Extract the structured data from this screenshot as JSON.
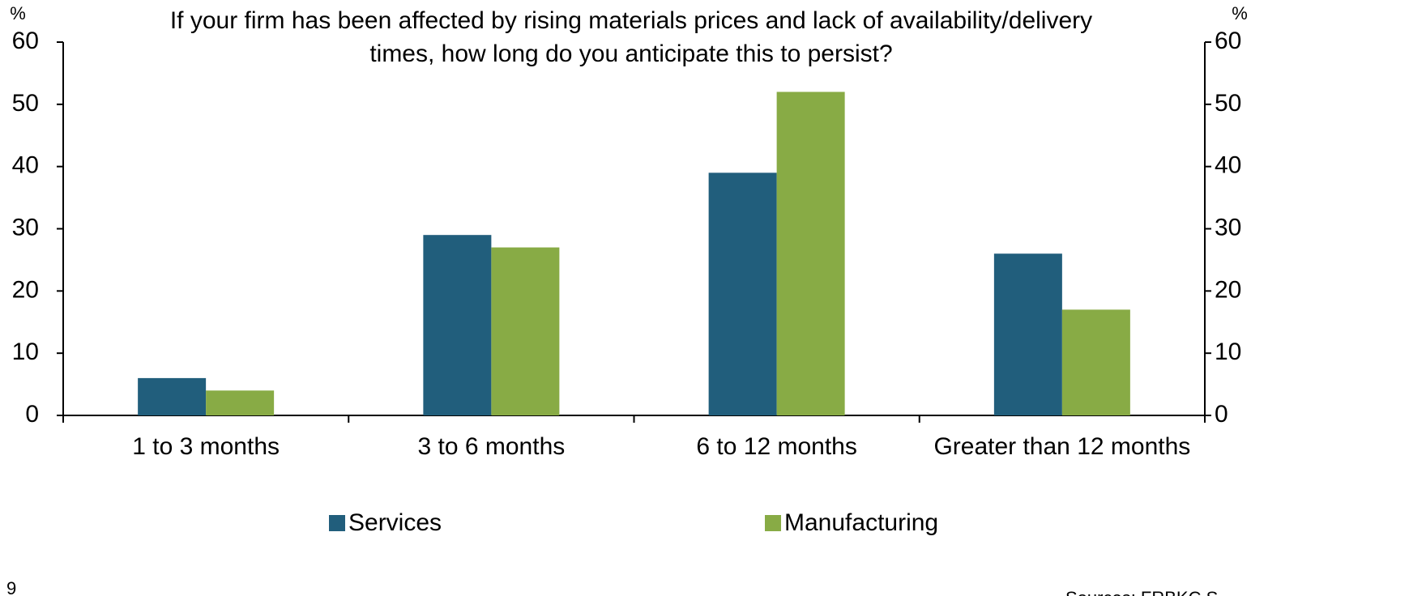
{
  "chart_data": {
    "type": "bar",
    "title": [
      "If your firm has been affected by rising materials prices and lack of availability/delivery",
      "times, how long do you anticipate this to persist?"
    ],
    "y_label": "%",
    "y2_label": "%",
    "categories": [
      "1 to 3 months",
      "3 to 6 months",
      "6 to 12 months",
      "Greater than 12 months"
    ],
    "series": [
      {
        "name": "Services",
        "color": "#215e7c",
        "values": [
          6,
          29,
          39,
          26
        ]
      },
      {
        "name": "Manufacturing",
        "color": "#88ab45",
        "values": [
          4,
          27,
          52,
          17
        ]
      }
    ],
    "ylim": [
      0,
      60
    ],
    "yticks": [
      0,
      10,
      20,
      30,
      40,
      50,
      60
    ],
    "y2lim": [
      0,
      60
    ],
    "y2ticks": [
      0,
      10,
      20,
      30,
      40,
      50,
      60
    ],
    "legend": "bottom",
    "page_number": "9",
    "source": "Sources: FRBKC S"
  }
}
